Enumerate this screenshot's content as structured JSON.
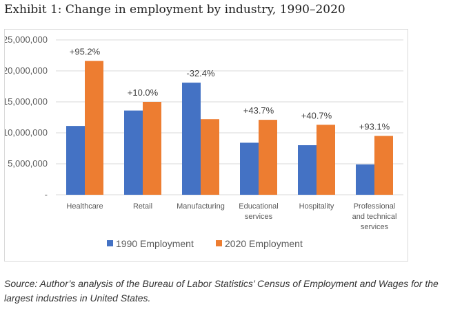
{
  "exhibit": {
    "title": "Exhibit 1: Change in employment by industry, 1990–2020",
    "source": "Source: Author’s analysis of the Bureau of Labor Statistics’ Census of Employment and Wages for the largest industries in United States."
  },
  "colors": {
    "series_1990": "#4472C4",
    "series_2020": "#ED7D31",
    "gridline": "#d9d9d9"
  },
  "chart_data": {
    "type": "bar",
    "title": "",
    "xlabel": "",
    "ylabel": "",
    "ylim": [
      0,
      25000000
    ],
    "yticks": [
      0,
      5000000,
      10000000,
      15000000,
      20000000,
      25000000
    ],
    "ytick_labels": [
      "-",
      "5,000,000",
      "10,000,000",
      "15,000,000",
      "20,000,000",
      "25,000,000"
    ],
    "grid": true,
    "legend_position": "bottom",
    "categories": [
      [
        "Healthcare"
      ],
      [
        "Retail"
      ],
      [
        "Manufacturing"
      ],
      [
        "Educational",
        "services"
      ],
      [
        "Hospitality"
      ],
      [
        "Professional",
        "and technical",
        "services"
      ]
    ],
    "series": [
      {
        "name": "1990 Employment",
        "values": [
          11100000,
          13600000,
          18100000,
          8400000,
          8000000,
          4900000
        ]
      },
      {
        "name": "2020 Employment",
        "values": [
          21600000,
          15000000,
          12200000,
          12100000,
          11300000,
          9500000
        ]
      }
    ],
    "change_labels": [
      "+95.2%",
      "+10.0%",
      "-32.4%",
      "+43.7%",
      "+40.7%",
      "+93.1%"
    ]
  }
}
